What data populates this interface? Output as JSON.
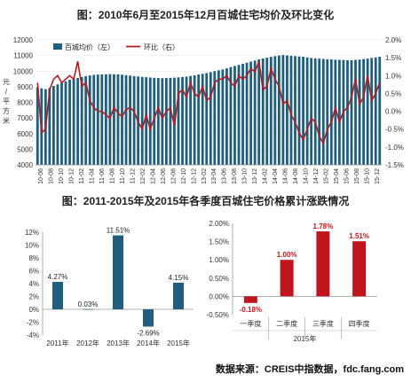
{
  "chart_data": [
    {
      "type": "bar+line",
      "title": "图：2010年6月至2015年12月百城住宅均价及环比变化",
      "ylabel": "元/平方米",
      "ylim": [
        4000,
        12000
      ],
      "y2lim": [
        -1.5,
        2.0
      ],
      "yticks": [
        "12000",
        "11000",
        "10000",
        "9000",
        "8000",
        "7000",
        "6000",
        "5000",
        "4000"
      ],
      "y2ticks": [
        "2.0%",
        "1.5%",
        "1.0%",
        "0.5%",
        "0.0%",
        "-0.5%",
        "-1.0%",
        "-1.5%"
      ],
      "xtick_labels": [
        "10-06",
        "10-08",
        "10-10",
        "10-12",
        "11-02",
        "11-04",
        "11-06",
        "11-08",
        "11-10",
        "11-12",
        "12-02",
        "12-04",
        "12-06",
        "12-08",
        "12-10",
        "12-12",
        "13-02",
        "13-04",
        "13-06",
        "13-08",
        "13-10",
        "13-12",
        "14-02",
        "14-04",
        "14-06",
        "14-08",
        "14-10",
        "14-12",
        "15-02",
        "15-04",
        "15-06",
        "15-08",
        "15-10",
        "15-12"
      ],
      "legend": {
        "position": "top-left"
      },
      "series": [
        {
          "name": "百城均价（左）",
          "kind": "bar",
          "color": "#1f5f7d",
          "values": [
            8960,
            8900,
            8850,
            8920,
            9050,
            9150,
            9250,
            9350,
            9450,
            9500,
            9560,
            9620,
            9680,
            9720,
            9760,
            9780,
            9790,
            9800,
            9810,
            9800,
            9790,
            9770,
            9740,
            9710,
            9680,
            9660,
            9630,
            9610,
            9590,
            9570,
            9560,
            9550,
            9560,
            9570,
            9580,
            9600,
            9620,
            9650,
            9690,
            9730,
            9780,
            9830,
            9880,
            9940,
            10000,
            10050,
            10110,
            10180,
            10260,
            10330,
            10400,
            10470,
            10540,
            10610,
            10680,
            10750,
            10810,
            10860,
            10910,
            10960,
            11000,
            11030,
            11010,
            10980,
            10960,
            10940,
            10920,
            10880,
            10840,
            10820,
            10800,
            10780,
            10760,
            10750,
            10730,
            10720,
            10710,
            10700,
            10700,
            10720,
            10740,
            10770,
            10800,
            10840,
            10880,
            10920
          ]
        },
        {
          "name": "环比（右）",
          "kind": "line",
          "color": "#b01c22",
          "values": [
            0.8,
            -0.6,
            -0.5,
            0.6,
            0.9,
            1.0,
            0.8,
            0.9,
            1.0,
            0.9,
            1.4,
            0.7,
            0.8,
            0.3,
            0.1,
            0.0,
            0.0,
            -0.1,
            -0.2,
            0.1,
            -0.05,
            -0.15,
            0.05,
            0.1,
            0.0,
            -0.3,
            -0.5,
            -0.1,
            -0.5,
            -0.2,
            0.1,
            -0.2,
            0.0,
            0.1,
            -0.4,
            0.5,
            0.6,
            0.4,
            0.8,
            0.5,
            0.4,
            0.7,
            0.3,
            0.4,
            0.8,
            0.9,
            0.9,
            1.0,
            0.8,
            0.7,
            1.0,
            0.9,
            1.0,
            1.2,
            1.1,
            1.4,
            0.6,
            0.7,
            1.2,
            0.9,
            0.7,
            0.2,
            0.3,
            -0.1,
            -0.3,
            -0.6,
            -0.8,
            -0.5,
            -0.2,
            -0.3,
            -0.7,
            -0.9,
            -0.5,
            -0.3,
            0.1,
            -0.3,
            0.0,
            0.1,
            0.4,
            0.9,
            0.2,
            0.4,
            1.0,
            0.3,
            0.5,
            0.8
          ]
        }
      ]
    },
    {
      "type": "bar",
      "title": "图：2011-2015年及2015年各季度百城住宅价格累计涨跌情况",
      "categories": [
        "2011年",
        "2012年",
        "2013年",
        "2014年",
        "2015年"
      ],
      "values": [
        4.27,
        0.03,
        11.51,
        -2.69,
        4.15
      ],
      "value_labels": [
        "4.27%",
        "0.03%",
        "11.51%",
        "-2.69%",
        "4.15%"
      ],
      "ylim": [
        -4,
        12
      ],
      "yticks": [
        "12%",
        "10%",
        "8%",
        "6%",
        "4%",
        "2%",
        "0%",
        "-2%",
        "-4%"
      ],
      "color": "#1f5f7d"
    },
    {
      "type": "bar",
      "categories": [
        "一季度",
        "二季度",
        "三季度",
        "四季度"
      ],
      "group_label": "2015年",
      "values": [
        -0.18,
        1.0,
        1.78,
        1.51
      ],
      "value_labels": [
        "-0.18%",
        "1.00%",
        "1.78%",
        "1.51%"
      ],
      "ylim": [
        -0.5,
        2.0
      ],
      "yticks": [
        "2.00%",
        "1.50%",
        "1.00%",
        "0.50%",
        "0.00%",
        "-0.50%"
      ],
      "color": "#c0151d",
      "label_color": "#c0151d"
    }
  ],
  "footer": {
    "source": "数据来源：CREIS中指数据，fdc.fang.com"
  }
}
